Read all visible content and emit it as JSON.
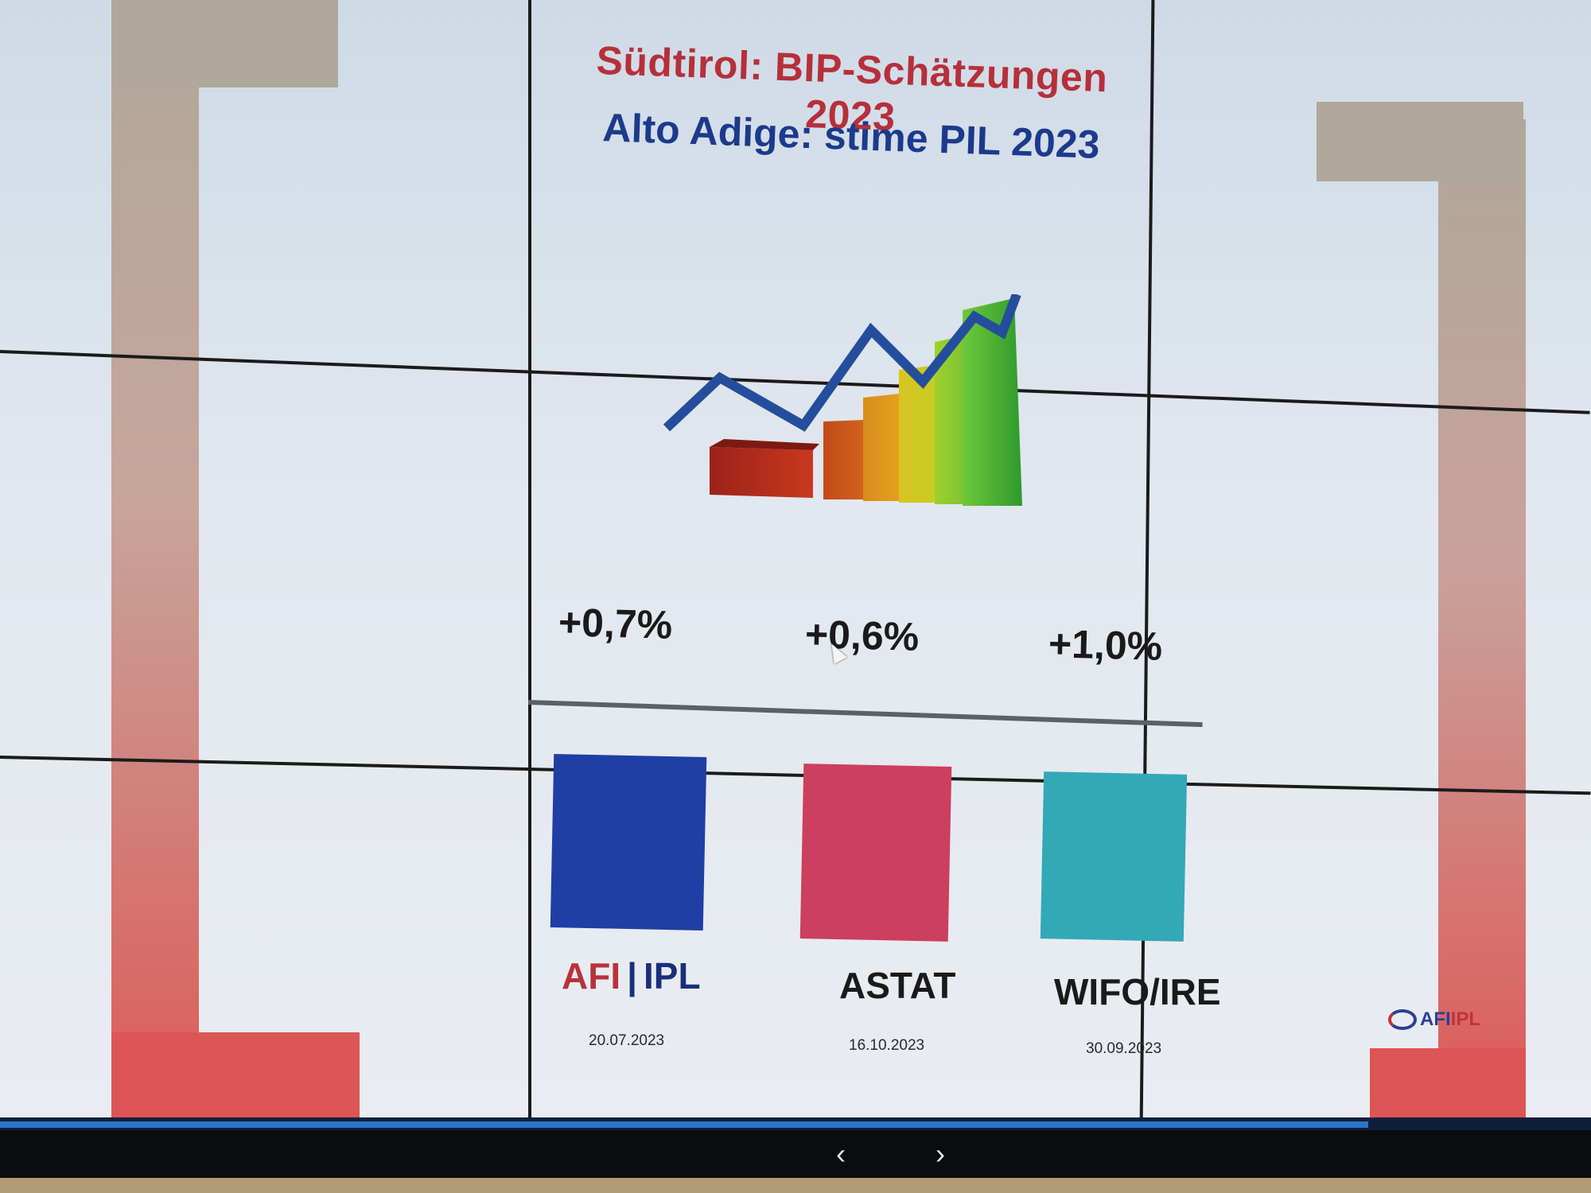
{
  "slide": {
    "title_de": "Südtirol: BIP-Schätzungen 2023",
    "title_it": "Alto Adige: stime PIL 2023"
  },
  "estimates": [
    {
      "value": "+0,7%",
      "source_afi": "AFI",
      "source_sep": "|",
      "source_ipl": "IPL",
      "date": "20.07.2023",
      "color": "#1f3fa6"
    },
    {
      "value": "+0,6%",
      "source": "ASTAT",
      "date": "16.10.2023",
      "color": "#cc3f5e"
    },
    {
      "value": "+1,0%",
      "source": "WIFO/IRE",
      "date": "30.09.2023",
      "color": "#33a8b7"
    }
  ],
  "logo": {
    "afi": "AFI",
    "ipl": "IPL"
  },
  "colors": {
    "title_de": "#b5303a",
    "title_it": "#1c3a8c",
    "bracket": "#dc5656"
  },
  "nav": {
    "prev": "‹",
    "next": "›",
    "progress": 0.86
  },
  "icons": {
    "pointer": "mouse-pointer-icon",
    "graphic": "growth-chart-icon"
  }
}
